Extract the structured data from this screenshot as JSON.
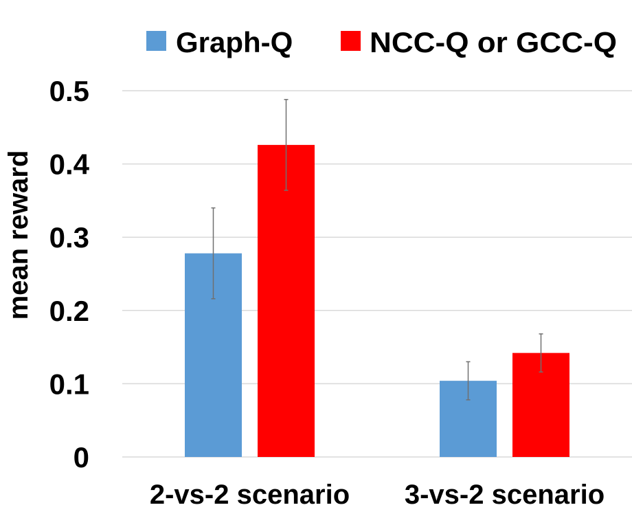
{
  "chart_data": {
    "type": "bar",
    "title": "",
    "xlabel": "",
    "ylabel": "mean reward",
    "ylim": [
      0,
      0.5
    ],
    "yticks": [
      "0",
      "0.1",
      "0.2",
      "0.3",
      "0.4",
      "0.5"
    ],
    "grid": true,
    "legend_position": "top",
    "categories": [
      "2-vs-2 scenario",
      "3-vs-2 scenario"
    ],
    "series": [
      {
        "name": "Graph-Q",
        "color": "#5b9bd5",
        "values": [
          0.278,
          0.104
        ],
        "errors": [
          0.062,
          0.026
        ]
      },
      {
        "name": "NCC-Q or GCC-Q",
        "color": "#ff0000",
        "values": [
          0.426,
          0.142
        ],
        "errors": [
          0.062,
          0.026
        ]
      }
    ]
  }
}
